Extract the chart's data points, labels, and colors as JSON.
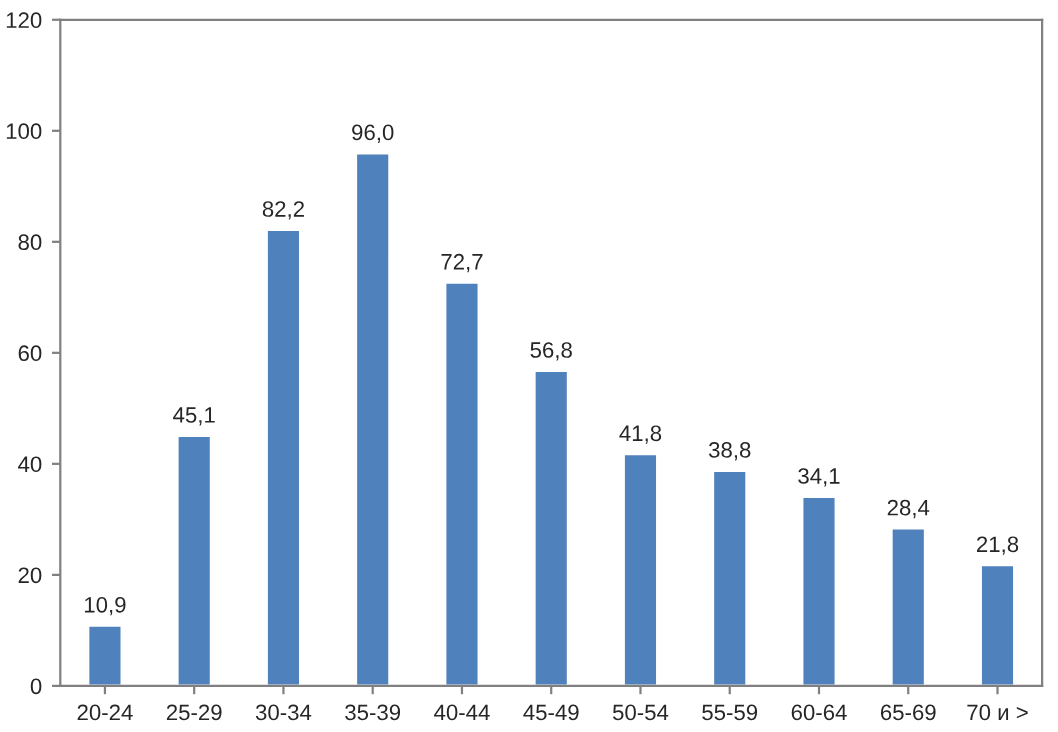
{
  "chart_data": {
    "type": "bar",
    "categories": [
      "20-24",
      "25-29",
      "30-34",
      "35-39",
      "40-44",
      "45-49",
      "50-54",
      "55-59",
      "60-64",
      "65-69",
      "70 и >"
    ],
    "values": [
      10.9,
      45.1,
      82.2,
      96.0,
      72.7,
      56.8,
      41.8,
      38.8,
      34.1,
      28.4,
      21.8
    ],
    "value_labels": [
      "10,9",
      "45,1",
      "82,2",
      "96,0",
      "72,7",
      "56,8",
      "41,8",
      "38,8",
      "34,1",
      "28,4",
      "21,8"
    ],
    "color": "#4f81bd",
    "ylim": [
      0,
      120
    ],
    "yticks": [
      0,
      20,
      40,
      60,
      80,
      100,
      120
    ],
    "grid": false,
    "legend": false
  }
}
